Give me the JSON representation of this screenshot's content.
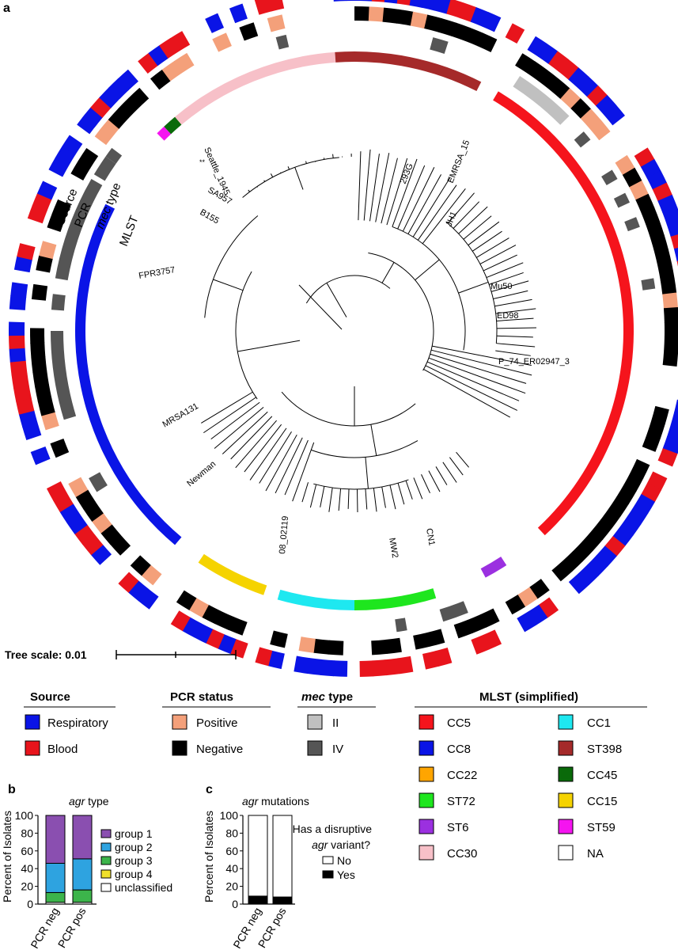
{
  "panels": {
    "a": "a",
    "b": "b",
    "c": "c"
  },
  "ring_labels": {
    "source": "Source",
    "pcr": "PCR",
    "mec": "mec",
    "mec_suffix": " type",
    "mlst": "MLST"
  },
  "taxa": [
    "Seattle_1945",
    "293G",
    "EMRSA_15",
    "JH1",
    "SA957",
    "B155",
    "FPR3757",
    "Mu50",
    "ED98",
    "P_74_ER02947_3",
    "MRSA131",
    "Newman",
    "08_02119",
    "MW2",
    "CN1"
  ],
  "tree_marker": "**",
  "tree_scale": {
    "label": "Tree scale: 0.01",
    "value": 0.01
  },
  "colors": {
    "respiratory": "#0a14e6",
    "blood": "#e8141c",
    "pcr_positive": "#f4a07a",
    "pcr_negative": "#000000",
    "mec_II": "#c0c0c0",
    "mec_IV": "#555555",
    "agr_group1": "#8a4fb0",
    "agr_group2": "#2ea3e0",
    "agr_group3": "#3cb44b",
    "agr_group4": "#f0e02a",
    "agr_unclassified": "#ffffff",
    "agr_yes": "#000000",
    "agr_no": "#ffffff"
  },
  "legends": {
    "source": {
      "title": "Source",
      "items": [
        {
          "label": "Respiratory",
          "color": "#0a14e6"
        },
        {
          "label": "Blood",
          "color": "#e8141c"
        }
      ]
    },
    "pcr": {
      "title": "PCR status",
      "items": [
        {
          "label": "Positive",
          "color": "#f4a07a"
        },
        {
          "label": "Negative",
          "color": "#000000"
        }
      ]
    },
    "mec": {
      "title_italic": "mec",
      "title_rest": " type",
      "items": [
        {
          "label": "II",
          "color": "#c0c0c0"
        },
        {
          "label": "IV",
          "color": "#555555"
        }
      ]
    },
    "mlst": {
      "title": "MLST (simplified)",
      "col1": [
        {
          "label": "CC5",
          "color": "#f5141c"
        },
        {
          "label": "CC8",
          "color": "#0a14e6"
        },
        {
          "label": "CC22",
          "color": "#ffa500"
        },
        {
          "label": "ST72",
          "color": "#1ee61e"
        },
        {
          "label": "ST6",
          "color": "#9b30e0"
        },
        {
          "label": "CC30",
          "color": "#f7c0c8"
        }
      ],
      "col2": [
        {
          "label": "CC1",
          "color": "#1ee8f0"
        },
        {
          "label": "ST398",
          "color": "#a52a2a"
        },
        {
          "label": "CC45",
          "color": "#0a6a0a"
        },
        {
          "label": "CC15",
          "color": "#f5d300"
        },
        {
          "label": "ST59",
          "color": "#f514f0"
        },
        {
          "label": "NA",
          "color": "#ffffff"
        }
      ]
    }
  },
  "chart_data": [
    {
      "type": "bar",
      "stacked": true,
      "title_italic": "agr",
      "title_rest": " type",
      "ylabel": "Percent of Isolates",
      "ylim": [
        0,
        100
      ],
      "yticks": [
        "0",
        "20",
        "40",
        "60",
        "80",
        "100"
      ],
      "categories": [
        "PCR neg",
        "PCR pos"
      ],
      "series": [
        {
          "name": "unclassified",
          "values": [
            2,
            2
          ]
        },
        {
          "name": "group 4",
          "values": [
            0,
            0
          ]
        },
        {
          "name": "group 3",
          "values": [
            11,
            14
          ]
        },
        {
          "name": "group 2",
          "values": [
            33,
            35
          ]
        },
        {
          "name": "group 1",
          "values": [
            54,
            49
          ]
        }
      ],
      "legend_order": [
        "group 1",
        "group 2",
        "group 3",
        "group 4",
        "unclassified"
      ]
    },
    {
      "type": "bar",
      "stacked": true,
      "title_italic": "agr",
      "title_rest": " mutations",
      "ylabel": "Percent of Isolates",
      "ylim": [
        0,
        100
      ],
      "yticks": [
        "0",
        "20",
        "40",
        "60",
        "80",
        "100"
      ],
      "categories": [
        "PCR neg",
        "PCR pos"
      ],
      "series": [
        {
          "name": "Yes",
          "values": [
            9,
            8
          ]
        },
        {
          "name": "No",
          "values": [
            91,
            92
          ]
        }
      ],
      "legend_title": [
        "Has a disruptive",
        "agr variant?"
      ],
      "legend_title_italic_word": "agr",
      "legend_order": [
        "No",
        "Yes"
      ]
    }
  ]
}
